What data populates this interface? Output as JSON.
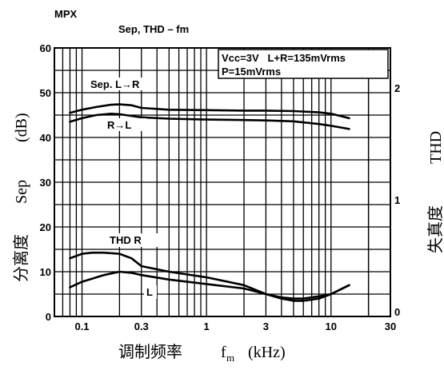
{
  "header_tag": "MPX",
  "chart_data": {
    "type": "line",
    "title": "Sep, THD – fm",
    "x_scale": "log",
    "xlim": [
      0.06,
      30
    ],
    "x_ticks": [
      0.1,
      0.3,
      1,
      3,
      10,
      30
    ],
    "x_tick_labels": [
      "0.1",
      "0.3",
      "1",
      "3",
      "10",
      "30"
    ],
    "xlabel": {
      "cn": "调制频率",
      "symbol": "f",
      "subscript": "m",
      "unit": "(kHz)"
    },
    "left_axis": {
      "label_cn": "分离度",
      "label_en": "Sep",
      "unit": "(dB)",
      "ylim": [
        0,
        60
      ],
      "ticks": [
        0,
        10,
        20,
        30,
        40,
        50,
        60
      ],
      "tick_labels": [
        "0",
        "10",
        "20",
        "30",
        "40",
        "50",
        "60"
      ]
    },
    "right_axis": {
      "label_cn": "失真度",
      "label_en": "THD",
      "ylim": [
        0,
        2.4
      ],
      "ticks": [
        0,
        1,
        2
      ],
      "tick_labels": [
        "0",
        "1",
        "2"
      ]
    },
    "grid": true,
    "conditions": [
      "Vcc=3V   L+R=135mVrms",
      "P=15mVrms"
    ],
    "series": [
      {
        "name": "Sep. L→R",
        "axis": "left",
        "x": [
          0.08,
          0.1,
          0.13,
          0.17,
          0.2,
          0.25,
          0.3,
          0.5,
          1,
          2,
          3,
          5,
          8,
          10,
          14
        ],
        "y": [
          45.5,
          46.2,
          46.8,
          47.3,
          47.4,
          47.2,
          46.6,
          46.2,
          46.1,
          46.0,
          46.0,
          45.9,
          45.6,
          45.3,
          44.3
        ]
      },
      {
        "name": "R→L",
        "axis": "left",
        "x": [
          0.08,
          0.1,
          0.13,
          0.17,
          0.2,
          0.25,
          0.3,
          0.5,
          1,
          2,
          3,
          5,
          8,
          10,
          14
        ],
        "y": [
          43.5,
          44.3,
          45.0,
          45.3,
          45.2,
          44.8,
          44.5,
          44.2,
          44.0,
          43.9,
          43.8,
          43.6,
          43.0,
          42.6,
          41.9
        ]
      },
      {
        "name": "THD R",
        "axis": "right",
        "x": [
          0.08,
          0.1,
          0.12,
          0.15,
          0.2,
          0.25,
          0.3,
          0.5,
          1,
          2,
          3,
          4,
          5,
          6,
          8,
          10,
          14
        ],
        "y": [
          0.52,
          0.56,
          0.57,
          0.57,
          0.56,
          0.52,
          0.45,
          0.4,
          0.35,
          0.28,
          0.2,
          0.16,
          0.14,
          0.14,
          0.16,
          0.2,
          0.28
        ]
      },
      {
        "name": "L",
        "axis": "right",
        "x": [
          0.08,
          0.1,
          0.15,
          0.2,
          0.25,
          0.3,
          0.5,
          1,
          2,
          3,
          4,
          5,
          6,
          8,
          10,
          14
        ],
        "y": [
          0.26,
          0.31,
          0.37,
          0.4,
          0.39,
          0.37,
          0.33,
          0.29,
          0.25,
          0.2,
          0.17,
          0.16,
          0.16,
          0.18,
          0.2,
          0.28
        ]
      }
    ]
  }
}
